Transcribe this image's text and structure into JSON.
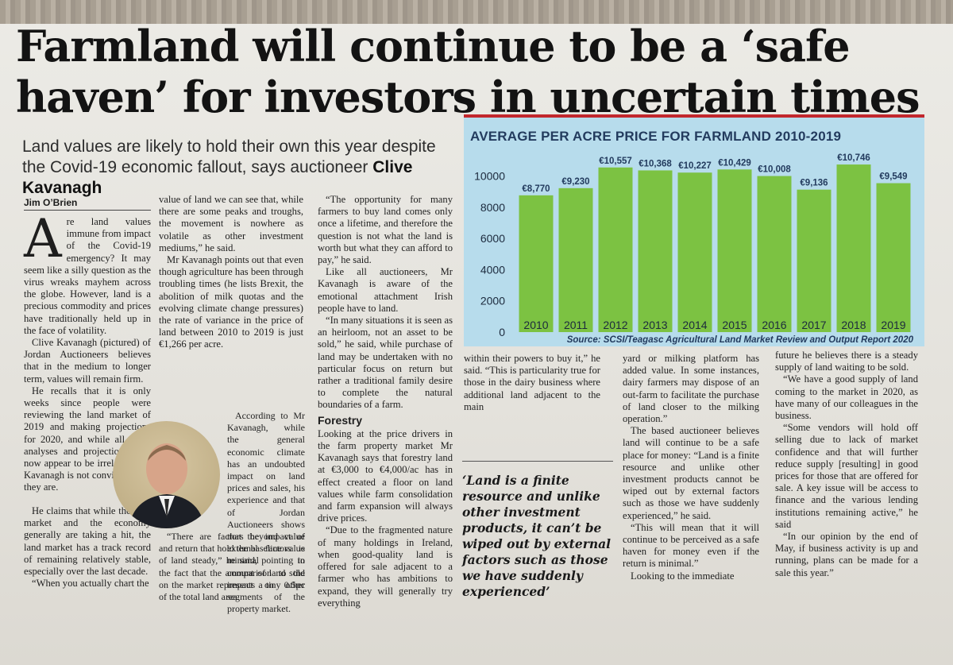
{
  "headline": {
    "line1": "Farmland will continue to be a ‘safe",
    "line2": "haven’ for investors in uncertain times"
  },
  "deck": {
    "text": "Land values are likely to hold their own this year despite the Covid-19 economic fallout, says auctioneer ",
    "name": "Clive Kavanagh"
  },
  "byline": "Jim O’Brien",
  "chart_data": {
    "type": "bar",
    "title": "AVERAGE PER ACRE PRICE FOR FARMLAND 2010-2019",
    "categories": [
      "2010",
      "2011",
      "2012",
      "2013",
      "2014",
      "2015",
      "2016",
      "2017",
      "2018",
      "2019"
    ],
    "values": [
      8770,
      9230,
      10557,
      10368,
      10227,
      10429,
      10008,
      9136,
      10746,
      9549
    ],
    "value_labels": [
      "€8,770",
      "€9,230",
      "€10,557",
      "€10,368",
      "€10,227",
      "€10,429",
      "€10,008",
      "€9,136",
      "€10,746",
      "€9,549"
    ],
    "yticks": [
      "0",
      "2000",
      "4000",
      "6000",
      "8000",
      "10000"
    ],
    "ylim": [
      0,
      10000
    ],
    "grid": false,
    "bar_color": "#7cc242",
    "background": "#b7dcec",
    "source": "Source: SCSI/Teagasc Agricultural Land Market Review and Output Report 2020"
  },
  "col1": {
    "dropcap": "A",
    "p1": "re land values immune from impact of the Covid-19 emergency? It may seem like a silly question as the virus wreaks mayhem across the globe. However, land is a precious commodity and prices have traditionally held up in the face of volatility.",
    "p2": "Clive Kavanagh (pictured) of Jordan Auctioneers believes that in the medium to longer term, values will remain firm.",
    "p3": "He recalls that it is only weeks since people were reviewing the land market of 2019 and making projections for 2020, and while all those analyses and projections may now appear to be irrelevant Mr Kavanagh is not convinced that they are.",
    "p4": "He claims that while the land market and the economy generally are taking a hit, the land market has a track record of remaining relatively stable, especially over the last decade.",
    "p5": "“When you actually chart the"
  },
  "col2": {
    "p1": "value of land we can see that, while there are some peaks and troughs, the movement is nowhere as volatile as other investment mediums,” he said.",
    "p2": "Mr Kavanagh points out that even though agriculture has been through troubling times (he lists Brexit, the abolition of milk quotas and the evolving climate change pressures) the rate of variance in the price of land between 2010 to 2019 is just €1,266 per acre.",
    "p3": "According to Mr Kavanagh, while the general economic climate has an undoubted impact on land prices and sales, his experience and that of Jordan Auctioneers shows that the impact of external factors is minimal in comparison to the impact on other segments of the property market.",
    "p4": "“There are factors beyond value and return that hold the baseline value of land steady,” he said, pointing to the fact that the amount of land sold on the market represents a tiny 0.5pc of the total land area."
  },
  "col3": {
    "p1": "“The opportunity for many farmers to buy land comes only once a lifetime, and therefore the question is not what the land is worth but what they can afford to pay,” he said.",
    "p2": "Like all auctioneers, Mr Kavanagh is aware of the emotional attachment Irish people have to land.",
    "p3": "“In many situations it is seen as an heirloom, not an asset to be sold,” he said, while purchase of land may be undertaken with no particular focus on return but rather a traditional family desire to complete the natural boundaries of a farm.",
    "subhead": "Forestry",
    "p4": "Looking at the price drivers in the farm property market Mr Kavanagh says that forestry land at €3,000 to €4,000/ac has in effect created a floor on land values while farm consolidation and farm expansion will always drive prices.",
    "p5": "“Due to the fragmented nature of many holdings in Ireland, when good-quality land is offered for sale adjacent to a farmer who has ambitions to expand, they will generally try everything"
  },
  "col4": {
    "p1": "within their powers to buy it,” he said. “This is particularity true for those in the dairy business where additional land adjacent to the main"
  },
  "col5": {
    "p1": "yard or milking platform has added value. In some instances, dairy farmers may dispose of an out-farm to facilitate the purchase of land closer to the milking operation.”",
    "p2": "The based auctioneer believes land will continue to be a safe place for money: “Land is a finite resource and unlike other investment products cannot be wiped out by external factors such as those we have suddenly experienced,” he said.",
    "p3": "“This will mean that it will continue to be perceived as a safe haven for money even if the return is minimal.”",
    "p4": "Looking to the immediate"
  },
  "col6": {
    "p1": "future he believes there is a steady supply of land waiting to be sold.",
    "p2": "“We have a good supply of land coming to the market in 2020, as have many of our colleagues in the business.",
    "p3": "“Some vendors will hold off selling due to lack of market confidence and that will further reduce supply [resulting] in good prices for those that are offered for sale. A key issue will be access to finance and the various lending institutions remaining active,” he said",
    "p4": "“In our opinion by the end of May, if business activity is up and running, plans can be made for a sale this year.”"
  },
  "pullquote": "‘Land is a finite resource and unlike other investment products, it can’t be wiped out by external factors such as those we have suddenly experienced’"
}
